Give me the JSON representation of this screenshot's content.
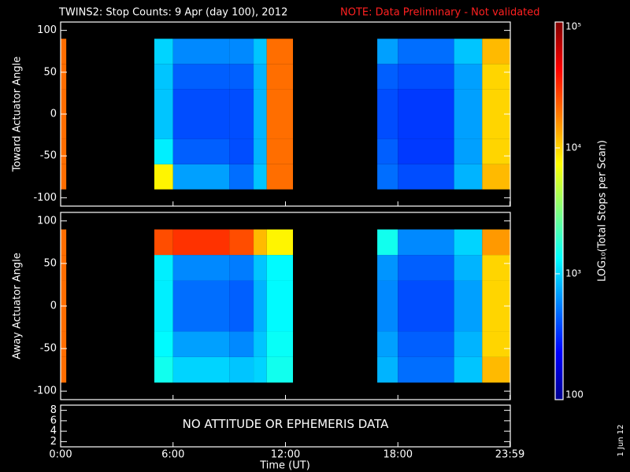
{
  "title": "TWINS2: Stop Counts:  9 Apr (day 100), 2012",
  "note": "NOTE: Data Preliminary - Not validated",
  "footer_date": "1 Jun 12",
  "chart_data": [
    {
      "type": "heatmap",
      "ylabel": "Toward Actuator Angle",
      "xlim": [
        0,
        24
      ],
      "ylim": [
        -110,
        110
      ],
      "yticks": [
        -100,
        -50,
        0,
        50,
        100
      ],
      "x_edges": [
        0,
        0.3,
        5,
        6,
        9,
        10.3,
        11,
        12.4,
        16.9,
        18,
        21,
        22.5,
        24
      ],
      "y_edges": [
        -90,
        -60,
        -30,
        30,
        60,
        90
      ],
      "values": [
        [
          20000,
          null,
          8000,
          700,
          500,
          900,
          20000,
          null,
          500,
          400,
          800,
          12000
        ],
        [
          20000,
          null,
          1200,
          450,
          400,
          800,
          20000,
          null,
          450,
          350,
          700,
          10000
        ],
        [
          20000,
          null,
          900,
          400,
          400,
          800,
          20000,
          null,
          400,
          350,
          700,
          10000
        ],
        [
          20000,
          null,
          900,
          450,
          450,
          800,
          20000,
          null,
          450,
          400,
          700,
          10000
        ],
        [
          20000,
          null,
          1000,
          600,
          600,
          900,
          20000,
          null,
          700,
          500,
          900,
          12000
        ]
      ]
    },
    {
      "type": "heatmap",
      "ylabel": "Away Actuator Angle",
      "xlim": [
        0,
        24
      ],
      "ylim": [
        -110,
        110
      ],
      "yticks": [
        -100,
        -50,
        0,
        50,
        100
      ],
      "x_edges": [
        0,
        0.3,
        5,
        6,
        9,
        10.3,
        11,
        12.4,
        16.9,
        18,
        21,
        22.5,
        24
      ],
      "y_edges": [
        -90,
        -60,
        -30,
        30,
        60,
        90
      ],
      "values": [
        [
          20000,
          null,
          1500,
          1000,
          900,
          1000,
          1500,
          null,
          800,
          500,
          900,
          12000
        ],
        [
          20000,
          null,
          1300,
          700,
          600,
          900,
          1400,
          null,
          700,
          450,
          800,
          10000
        ],
        [
          20000,
          null,
          1200,
          500,
          450,
          800,
          1300,
          null,
          600,
          400,
          700,
          10000
        ],
        [
          20000,
          null,
          1200,
          600,
          550,
          900,
          1300,
          null,
          650,
          450,
          800,
          10000
        ],
        [
          20000,
          null,
          25000,
          30000,
          25000,
          12000,
          8000,
          null,
          1500,
          600,
          1000,
          15000
        ]
      ]
    },
    {
      "type": "text",
      "annotation": "NO ATTITUDE OR EPHEMERIS DATA",
      "xlabel": "Time (UT)",
      "xlim": [
        0,
        24
      ],
      "xticks": [
        {
          "value": 0,
          "label": "0:00"
        },
        {
          "value": 6,
          "label": "6:00"
        },
        {
          "value": 12,
          "label": "12:00"
        },
        {
          "value": 18,
          "label": "18:00"
        },
        {
          "value": 23.98,
          "label": "23:59"
        }
      ],
      "ylim": [
        1,
        9
      ],
      "yticks": [
        2,
        4,
        6,
        8
      ]
    }
  ],
  "colorbar": {
    "label": "LOG₁₀(Total Stops per Scan)",
    "log": true,
    "zlim": [
      100,
      100000
    ],
    "zticks": [
      {
        "value": 100,
        "label": "100"
      },
      {
        "value": 1000,
        "label": "10³"
      },
      {
        "value": 10000,
        "label": "10⁴"
      },
      {
        "value": 100000,
        "label": "10⁵"
      }
    ]
  }
}
